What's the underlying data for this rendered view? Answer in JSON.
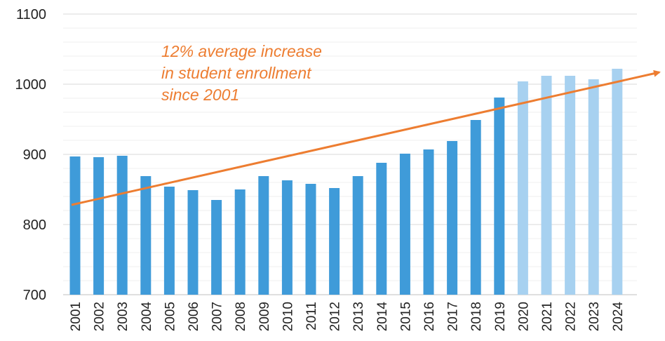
{
  "chart_data": {
    "type": "bar",
    "title": "",
    "xlabel": "",
    "ylabel": "",
    "categories": [
      "2001",
      "2002",
      "2003",
      "2004",
      "2005",
      "2006",
      "2007",
      "2008",
      "2009",
      "2010",
      "2011",
      "2012",
      "2013",
      "2014",
      "2015",
      "2016",
      "2017",
      "2018",
      "2019",
      "2020",
      "2021",
      "2022",
      "2023",
      "2024"
    ],
    "values": [
      897,
      896,
      898,
      869,
      854,
      849,
      835,
      850,
      869,
      863,
      858,
      852,
      869,
      888,
      901,
      907,
      919,
      949,
      981,
      1004,
      1012,
      1012,
      1007,
      1022
    ],
    "ylim": [
      700,
      1100
    ],
    "yticks": [
      700,
      800,
      900,
      1000,
      1100
    ],
    "grid": true,
    "colors": {
      "actual": "#3F9BD9",
      "projected": "#A7D1F0",
      "trend": "#ED7D31",
      "grid": "#D9D9D9"
    },
    "projected_from": "2020",
    "trendline": {
      "start": {
        "x": "2001",
        "y": 828
      },
      "end": {
        "x": "2024",
        "y": 1005
      },
      "arrow": true
    },
    "annotation": {
      "lines": [
        "12% average increase",
        "in student enrollment",
        "since 2001"
      ]
    }
  }
}
